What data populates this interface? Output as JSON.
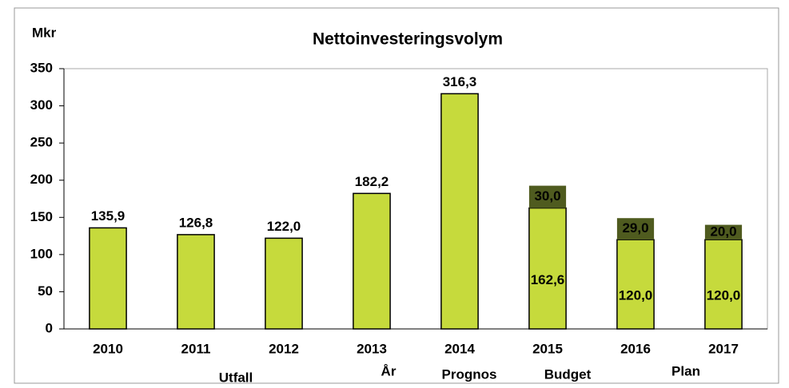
{
  "chart_data": {
    "type": "stacked_bar",
    "title": "Nettoinvesteringsvolym",
    "ylabel": "Mkr",
    "xlabel": "År",
    "annotations": [
      "Utfall",
      "Prognos",
      "Budget",
      "Plan"
    ],
    "categories": [
      "2010",
      "2011",
      "2012",
      "2013",
      "2014",
      "2015",
      "2016",
      "2017"
    ],
    "series": [
      {
        "color": "#c6da3c",
        "values": [
          135.9,
          126.8,
          122.0,
          182.2,
          316.3,
          162.6,
          120.0,
          120.0
        ],
        "value_labels": [
          "135,9",
          "126,8",
          "122,0",
          "182,2",
          "316,3",
          "162,6",
          "120,0",
          "120,0"
        ]
      },
      {
        "color": "#4f5b1f",
        "values": [
          null,
          null,
          null,
          null,
          null,
          30.0,
          29.0,
          20.0
        ],
        "value_labels": [
          null,
          null,
          null,
          null,
          null,
          "30,0",
          "29,0",
          "20,0"
        ]
      }
    ],
    "ylim": [
      0,
      350
    ],
    "yticks": [
      0,
      50,
      100,
      150,
      200,
      250,
      300,
      350
    ],
    "grid": false
  }
}
